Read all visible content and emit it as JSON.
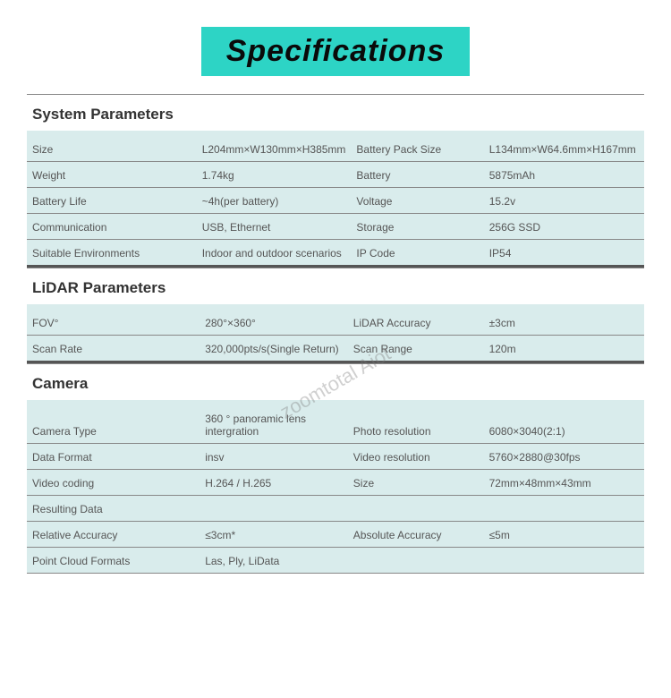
{
  "title": "Specifications",
  "watermark": "zoomtotal Aiot",
  "colors": {
    "banner_bg": "#2dd4c5",
    "banner_text": "#0a0a0a",
    "table_bg": "#d9ecec",
    "divider": "#888888",
    "section_divider": "#555555",
    "text": "#444444"
  },
  "sections": [
    {
      "header": "System Parameters",
      "rows": [
        {
          "l1": "Size",
          "v1": "L204mm×W130mm×H385mm",
          "l2": "Battery Pack Size",
          "v2": "L134mm×W64.6mm×H167mm"
        },
        {
          "l1": "Weight",
          "v1": "1.74kg",
          "l2": "Battery",
          "v2": "5875mAh"
        },
        {
          "l1": "Battery Life",
          "v1": "~4h(per battery)",
          "l2": "Voltage",
          "v2": "15.2v"
        },
        {
          "l1": "Communication",
          "v1": "USB, Ethernet",
          "l2": "Storage",
          "v2": "256G SSD"
        },
        {
          "l1": "Suitable Environments",
          "v1": "Indoor and outdoor scenarios",
          "l2": "IP Code",
          "v2": "IP54"
        }
      ]
    },
    {
      "header": "LiDAR Parameters",
      "rows": [
        {
          "l1": "FOV°",
          "v1": "280°×360°",
          "l2": "LiDAR Accuracy",
          "v2": "±3cm"
        },
        {
          "l1": "Scan Rate",
          "v1": "320,000pts/s(Single Return)",
          "l2": "Scan Range",
          "v2": "120m"
        }
      ]
    },
    {
      "header": "Camera",
      "rows": [
        {
          "l1": "Camera Type",
          "v1": "360 ° panoramic lens intergration",
          "l2": "Photo resolution",
          "v2": "6080×3040(2:1)"
        },
        {
          "l1": "Data Format",
          "v1": "insv",
          "l2": "Video resolution",
          "v2": "5760×2880@30fps"
        },
        {
          "l1": "Video coding",
          "v1": "H.264 / H.265",
          "l2": "Size",
          "v2": "72mm×48mm×43mm"
        },
        {
          "l1": "Resulting Data",
          "v1": "",
          "l2": "",
          "v2": ""
        },
        {
          "l1": "Relative Accuracy",
          "v1": "≤3cm*",
          "l2": "Absolute Accuracy",
          "v2": "≤5m"
        },
        {
          "l1": "Point Cloud Formats",
          "v1": "Las, Ply, LiData",
          "l2": "",
          "v2": ""
        }
      ]
    }
  ]
}
